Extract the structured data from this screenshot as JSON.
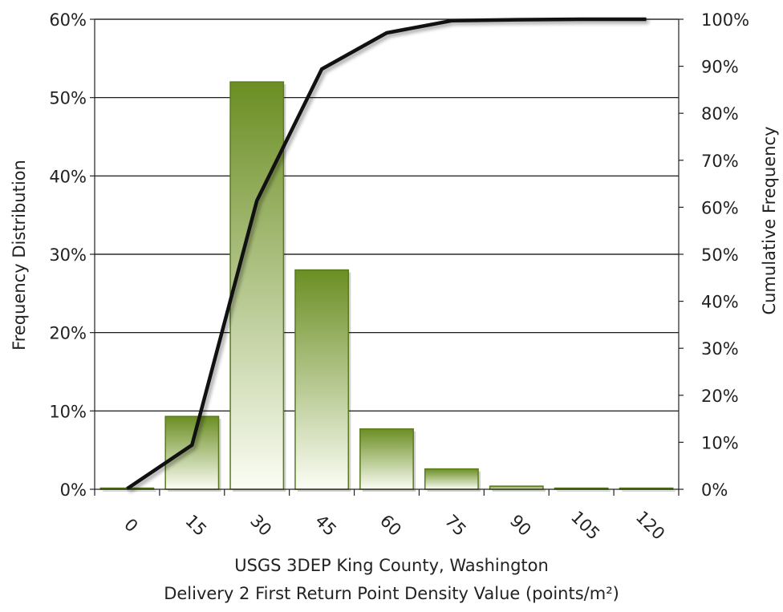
{
  "chart_data": {
    "type": "bar",
    "categories": [
      "0",
      "15",
      "30",
      "45",
      "60",
      "75",
      "90",
      "105",
      "120"
    ],
    "series": [
      {
        "name": "Frequency Distribution",
        "axis": "left",
        "type": "bar",
        "values": [
          0.1,
          9.3,
          52.0,
          28.0,
          7.7,
          2.6,
          0.4,
          0.1,
          0.1
        ]
      },
      {
        "name": "Cumulative Frequency",
        "axis": "right",
        "type": "line",
        "values": [
          0.1,
          9.4,
          61.4,
          89.4,
          97.1,
          99.7,
          99.9,
          100.0,
          100.0
        ]
      }
    ],
    "xlabel": [
      "USGS 3DEP King County, Washington",
      "Delivery 2 First Return Point Density Value (points/m²)"
    ],
    "ylabel": "Frequency Distribution",
    "y2label": "Cumulative Frequency",
    "ylim": [
      0,
      60
    ],
    "y2lim": [
      0,
      100
    ],
    "yticks": [
      "0%",
      "10%",
      "20%",
      "30%",
      "40%",
      "50%",
      "60%"
    ],
    "y2ticks": [
      "0%",
      "10%",
      "20%",
      "30%",
      "40%",
      "50%",
      "60%",
      "70%",
      "80%",
      "90%",
      "100%"
    ],
    "grid": true,
    "legend": "none",
    "colors": {
      "bar_top": "#6b8e23",
      "bar_bottom": "#fbfdf4",
      "bar_border": "#5a7a1e",
      "line": "#111111",
      "grid": "#000000"
    }
  }
}
